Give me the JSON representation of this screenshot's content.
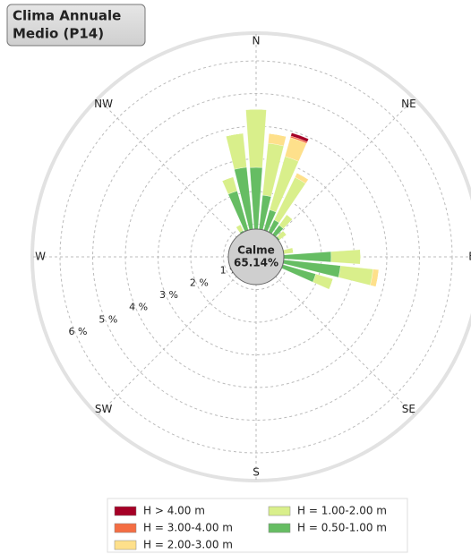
{
  "chart_data": {
    "type": "rose",
    "title_lines": [
      "Clima Annuale",
      "Medio (P14)"
    ],
    "calm_label": "Calme",
    "calm_value": "65.14%",
    "direction_labels": [
      "N",
      "NE",
      "E",
      "SE",
      "S",
      "SW",
      "W",
      "NW"
    ],
    "x": [
      330,
      340,
      350,
      0,
      10,
      20,
      30,
      40,
      50,
      80,
      90,
      100,
      110
    ],
    "series": [
      {
        "name": "H = 0.50-1.00 m",
        "color": "#66bd63",
        "values": [
          0.9,
          2.1,
          2.76,
          2.74,
          1.9,
          1.5,
          1.26,
          1.2,
          0.9,
          0.85,
          2.3,
          2.6,
          1.9
        ]
      },
      {
        "name": "H = 1.00-2.00 m",
        "color": "#d9ef8b",
        "values": [
          0.2,
          0.45,
          1.05,
          1.78,
          1.6,
          1.7,
          1.45,
          0.4,
          0.25,
          0.3,
          0.9,
          1.0,
          0.55
        ]
      },
      {
        "name": "H = 2.00-3.00 m",
        "color": "#fee08b",
        "values": [
          0,
          0,
          0,
          0,
          0.3,
          0.6,
          0.15,
          0,
          0,
          0,
          0,
          0.18,
          0
        ]
      },
      {
        "name": "H = 3.00-4.00 m",
        "color": "#f46d43",
        "values": [
          0,
          0,
          0,
          0,
          0,
          0.05,
          0,
          0,
          0,
          0,
          0,
          0,
          0
        ]
      },
      {
        "name": "H > 4.00 m",
        "color": "#a50026",
        "values": [
          0,
          0,
          0,
          0,
          0,
          0.1,
          0,
          0,
          0,
          0,
          0,
          0,
          0
        ]
      }
    ],
    "rlim": [
      0,
      6.85
    ],
    "rticks": [
      {
        "value": 1,
        "label": "1 %"
      },
      {
        "value": 2,
        "label": "2 %"
      },
      {
        "value": 3,
        "label": "3 %"
      },
      {
        "value": 4,
        "label": "4 %"
      },
      {
        "value": 5,
        "label": "5 %"
      },
      {
        "value": 6,
        "label": "6 %"
      }
    ],
    "grid": true
  }
}
